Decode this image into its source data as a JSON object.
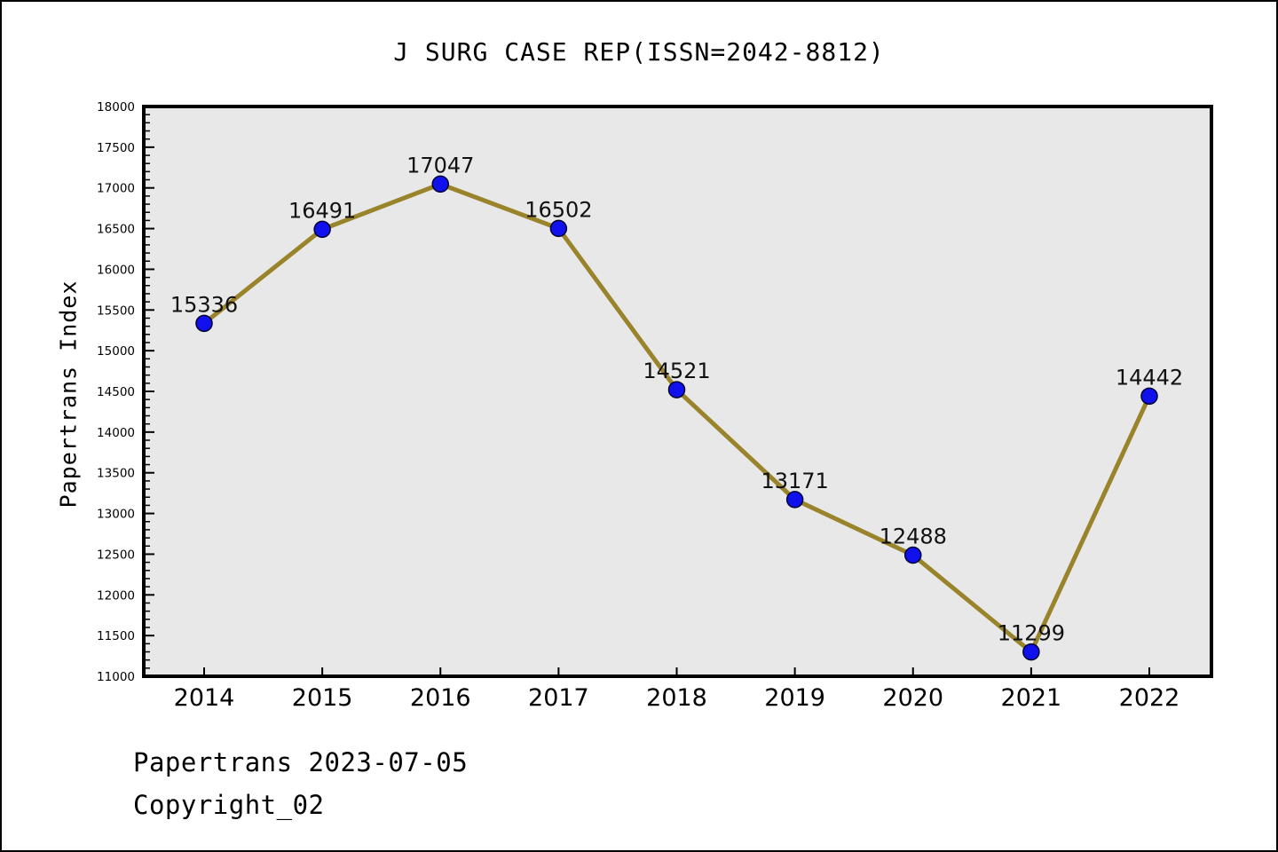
{
  "chart_data": {
    "type": "line",
    "title": "J SURG CASE REP(ISSN=2042-8812)",
    "categories": [
      "2014",
      "2015",
      "2016",
      "2017",
      "2018",
      "2019",
      "2020",
      "2021",
      "2022"
    ],
    "values": [
      15336,
      16491,
      17047,
      16502,
      14521,
      13171,
      12488,
      11299,
      14442
    ],
    "xlabel": "",
    "ylabel": "Papertrans Index",
    "ylim": [
      11000,
      18000
    ],
    "ytick_step": 500,
    "ytick_minor_step": 100,
    "grid": false,
    "legend": null,
    "point_labels_visible": true,
    "colors": {
      "line": "#9a842b",
      "marker_fill": "#1111ed",
      "marker_edge": "#000033",
      "plot_bg": "#e8e8e8",
      "spine": "#000000",
      "text": "#000000"
    }
  },
  "footer": {
    "line1": "Papertrans 2023-07-05",
    "line2": "Copyright_02"
  }
}
